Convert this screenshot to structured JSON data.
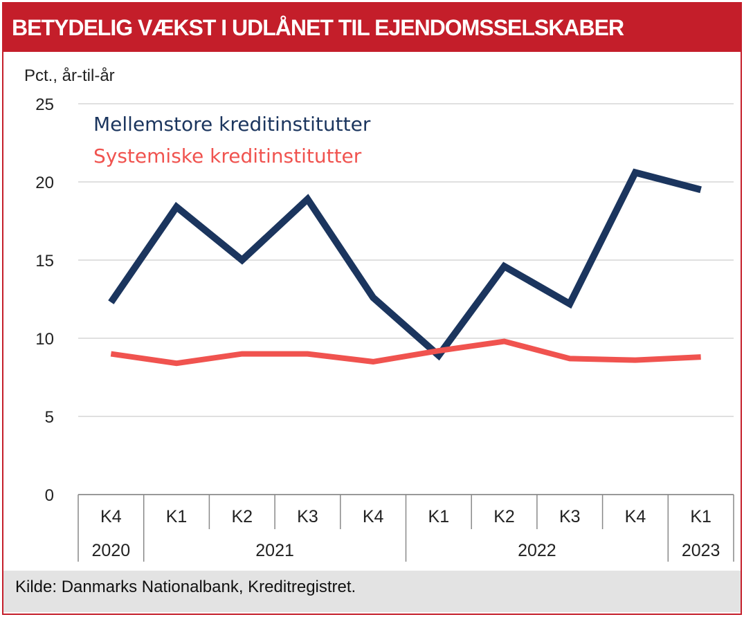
{
  "chart_data": {
    "type": "line",
    "title": "BETYDELIG VÆKST I UDLÅNET TIL EJENDOMSSELSKABER",
    "ylabel": "Pct., år-til-år",
    "ylim": [
      0,
      25
    ],
    "yticks": [
      0,
      5,
      10,
      15,
      20,
      25
    ],
    "grid": true,
    "categories": [
      "K4",
      "K1",
      "K2",
      "K3",
      "K4",
      "K1",
      "K2",
      "K3",
      "K4",
      "K1"
    ],
    "year_groups": [
      {
        "label": "2020",
        "span": 1
      },
      {
        "label": "2021",
        "span": 4
      },
      {
        "label": "2022",
        "span": 4
      },
      {
        "label": "2023",
        "span": 1
      }
    ],
    "legend_placement": "top-left",
    "series": [
      {
        "name": "Mellemstore kreditinstitutter",
        "color": "#1b355e",
        "values": [
          12.3,
          18.4,
          15.0,
          18.9,
          12.6,
          8.9,
          14.6,
          12.2,
          20.6,
          19.5
        ]
      },
      {
        "name": "Systemiske kreditinstitutter",
        "color": "#f0534f",
        "values": [
          9.0,
          8.4,
          9.0,
          9.0,
          8.5,
          9.2,
          9.8,
          8.7,
          8.6,
          8.8
        ]
      }
    ],
    "source": "Kilde: Danmarks Nationalbank, Kreditregistret."
  }
}
